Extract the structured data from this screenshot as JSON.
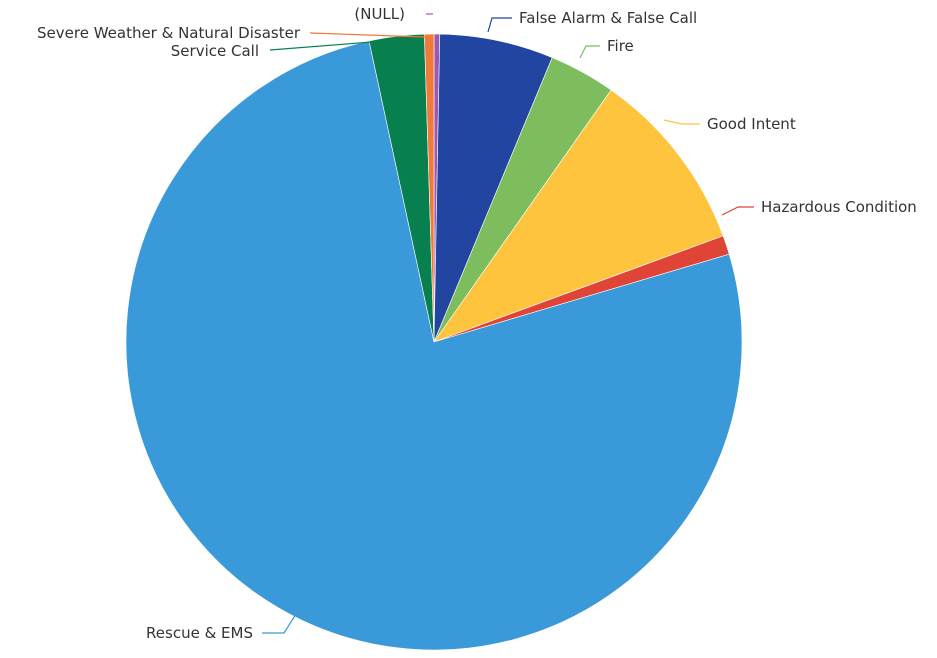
{
  "chart_data": {
    "type": "pie",
    "title": "",
    "slices": [
      {
        "label": "(NULL)",
        "value": 0.3,
        "color": "#9b59b6"
      },
      {
        "label": "False Alarm & False Call",
        "value": 6.0,
        "color": "#2145a0"
      },
      {
        "label": "Fire",
        "value": 3.5,
        "color": "#7dbd5e"
      },
      {
        "label": "Good Intent",
        "value": 9.7,
        "color": "#ffc43d"
      },
      {
        "label": "Hazardous Condition",
        "value": 1.0,
        "color": "#e04436"
      },
      {
        "label": "Rescue & EMS",
        "value": 76.6,
        "color": "#3a9ad9"
      },
      {
        "label": "Service Call",
        "value": 2.9,
        "color": "#087f4f"
      },
      {
        "label": "Severe Weather & Natural Disaster",
        "value": 0.5,
        "color": "#ef7a3a"
      }
    ],
    "start_angle_deg": 0,
    "direction": "clockwise",
    "legend": "none"
  }
}
